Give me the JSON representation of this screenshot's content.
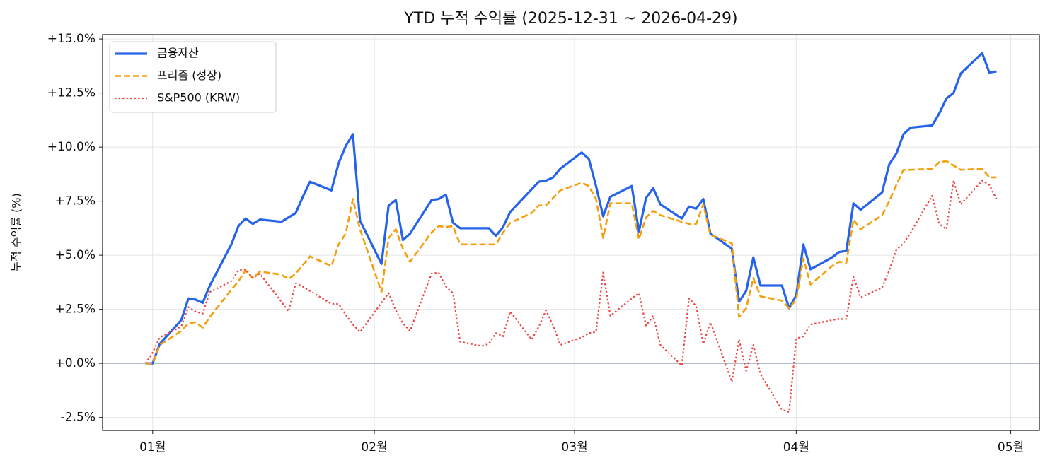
{
  "chart_data": {
    "type": "line",
    "title": "YTD 누적 수익률 (2025-12-31 ~ 2026-04-29)",
    "ylabel": "누적 수익률 (%)",
    "grid": true,
    "legend": "upper left",
    "reference_line": 0,
    "xlim": [
      "2025-12-25",
      "2026-05-05"
    ],
    "xticks": [
      {
        "value": "2026-01-01",
        "label": "01월"
      },
      {
        "value": "2026-02-01",
        "label": "02월"
      },
      {
        "value": "2026-03-01",
        "label": "03월"
      },
      {
        "value": "2026-04-01",
        "label": "04월"
      },
      {
        "value": "2026-05-01",
        "label": "05월"
      }
    ],
    "ylim": [
      -3.1,
      15.2
    ],
    "yticks": [
      {
        "value": -2.5,
        "label": "-2.5%"
      },
      {
        "value": 0,
        "label": "+0.0%"
      },
      {
        "value": 2.5,
        "label": "+2.5%"
      },
      {
        "value": 5,
        "label": "+5.0%"
      },
      {
        "value": 7.5,
        "label": "+7.5%"
      },
      {
        "value": 10,
        "label": "+10.0%"
      },
      {
        "value": 12.5,
        "label": "+12.5%"
      },
      {
        "value": 15,
        "label": "+15.0%"
      }
    ],
    "x": [
      "2025-12-31",
      "2026-01-01",
      "2026-01-02",
      "2026-01-05",
      "2026-01-06",
      "2026-01-07",
      "2026-01-08",
      "2026-01-09",
      "2026-01-12",
      "2026-01-13",
      "2026-01-14",
      "2026-01-15",
      "2026-01-16",
      "2026-01-19",
      "2026-01-20",
      "2026-01-21",
      "2026-01-22",
      "2026-01-23",
      "2026-01-26",
      "2026-01-27",
      "2026-01-28",
      "2026-01-29",
      "2026-01-30",
      "2026-02-02",
      "2026-02-03",
      "2026-02-04",
      "2026-02-05",
      "2026-02-06",
      "2026-02-09",
      "2026-02-10",
      "2026-02-11",
      "2026-02-12",
      "2026-02-13",
      "2026-02-16",
      "2026-02-17",
      "2026-02-18",
      "2026-02-19",
      "2026-02-20",
      "2026-02-23",
      "2026-02-24",
      "2026-02-25",
      "2026-02-26",
      "2026-02-27",
      "2026-03-02",
      "2026-03-03",
      "2026-03-04",
      "2026-03-05",
      "2026-03-06",
      "2026-03-09",
      "2026-03-10",
      "2026-03-11",
      "2026-03-12",
      "2026-03-13",
      "2026-03-16",
      "2026-03-17",
      "2026-03-18",
      "2026-03-19",
      "2026-03-20",
      "2026-03-23",
      "2026-03-24",
      "2026-03-25",
      "2026-03-26",
      "2026-03-27",
      "2026-03-30",
      "2026-03-31",
      "2026-04-01",
      "2026-04-02",
      "2026-04-03",
      "2026-04-06",
      "2026-04-07",
      "2026-04-08",
      "2026-04-09",
      "2026-04-10",
      "2026-04-13",
      "2026-04-14",
      "2026-04-15",
      "2026-04-16",
      "2026-04-17",
      "2026-04-20",
      "2026-04-21",
      "2026-04-22",
      "2026-04-23",
      "2026-04-24",
      "2026-04-27",
      "2026-04-28",
      "2026-04-29"
    ],
    "series": [
      {
        "name": "금융자산",
        "color": "#2563eb",
        "style": "solid",
        "width": 3.2,
        "values": [
          0,
          0,
          0.9,
          2.0,
          3.0,
          2.95,
          2.8,
          3.6,
          5.5,
          6.35,
          6.7,
          6.45,
          6.65,
          6.55,
          6.75,
          6.95,
          7.7,
          8.4,
          8.0,
          9.25,
          10.05,
          10.6,
          6.6,
          4.6,
          7.3,
          7.55,
          5.7,
          6.0,
          7.55,
          7.6,
          7.8,
          6.5,
          6.25,
          6.25,
          6.25,
          5.9,
          6.3,
          7.0,
          8.05,
          8.4,
          8.45,
          8.6,
          9.0,
          9.75,
          9.45,
          8.2,
          6.8,
          7.7,
          8.2,
          6.1,
          7.65,
          8.1,
          7.35,
          6.7,
          7.25,
          7.15,
          7.6,
          6.0,
          5.3,
          2.85,
          3.35,
          4.9,
          3.6,
          3.6,
          2.55,
          3.15,
          5.5,
          4.35,
          4.9,
          5.15,
          5.2,
          7.4,
          7.1,
          7.9,
          9.2,
          9.7,
          10.6,
          10.9,
          11.0,
          11.55,
          12.25,
          12.5,
          13.4,
          14.35,
          13.45,
          13.5
        ]
      },
      {
        "name": "프리즘 (성장)",
        "color": "#f59e0b",
        "style": "dashed",
        "width": 2.6,
        "values": [
          0,
          0,
          0.85,
          1.5,
          1.85,
          1.9,
          1.65,
          2.15,
          3.4,
          3.8,
          4.3,
          3.95,
          4.25,
          4.1,
          3.9,
          4.15,
          4.55,
          4.95,
          4.5,
          5.5,
          6.0,
          7.6,
          6.2,
          3.3,
          5.8,
          6.2,
          5.3,
          4.7,
          6.05,
          6.35,
          6.3,
          6.35,
          5.5,
          5.5,
          5.5,
          5.5,
          6.05,
          6.5,
          6.95,
          7.3,
          7.3,
          7.65,
          8.0,
          8.35,
          8.2,
          7.6,
          5.8,
          7.4,
          7.4,
          5.75,
          6.75,
          7.05,
          6.85,
          6.55,
          6.45,
          6.45,
          7.35,
          5.95,
          5.55,
          2.15,
          2.55,
          3.95,
          3.1,
          2.9,
          2.55,
          2.95,
          4.85,
          3.65,
          4.5,
          4.7,
          4.65,
          6.65,
          6.2,
          6.85,
          7.5,
          8.25,
          8.95,
          8.95,
          9.0,
          9.3,
          9.35,
          9.15,
          8.95,
          9.0,
          8.6,
          8.6
        ]
      },
      {
        "name": "S&P500 (KRW)",
        "color": "#ef4444",
        "style": "dotted",
        "width": 2.2,
        "values": [
          0,
          0.5,
          1.2,
          1.7,
          2.6,
          2.4,
          2.3,
          3.3,
          3.8,
          4.3,
          4.35,
          3.95,
          4.15,
          2.85,
          2.4,
          3.7,
          3.55,
          3.35,
          2.75,
          2.75,
          2.25,
          1.8,
          1.45,
          2.8,
          3.25,
          2.45,
          1.85,
          1.5,
          4.15,
          4.2,
          3.55,
          3.25,
          1.0,
          0.8,
          0.9,
          1.4,
          1.25,
          2.4,
          1.1,
          1.7,
          2.45,
          1.75,
          0.85,
          1.2,
          1.4,
          1.45,
          4.2,
          2.2,
          3.0,
          3.25,
          1.75,
          2.2,
          0.85,
          -0.1,
          3.0,
          2.65,
          0.9,
          1.9,
          -0.85,
          1.1,
          -0.35,
          0.85,
          -0.5,
          -2.15,
          -2.25,
          1.15,
          1.25,
          1.8,
          2.0,
          2.05,
          2.05,
          4.0,
          3.05,
          3.5,
          4.3,
          5.25,
          5.55,
          6.05,
          7.75,
          6.45,
          6.2,
          8.45,
          7.35,
          8.45,
          8.25,
          7.6
        ]
      }
    ]
  }
}
